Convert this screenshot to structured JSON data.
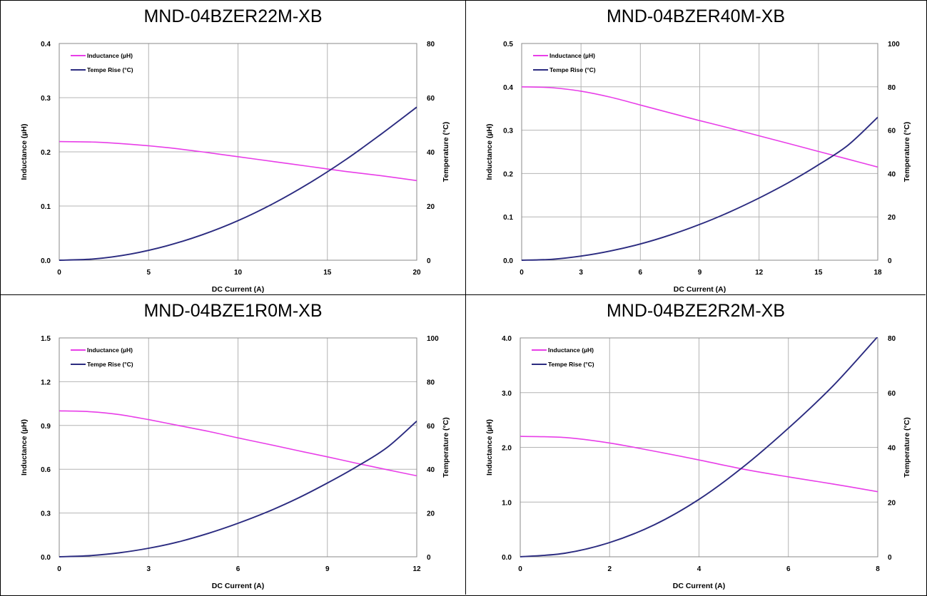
{
  "colors": {
    "inductance": "#e83ee8",
    "temperature": "#2b2b80",
    "grid": "#b4b4b4"
  },
  "chart_data": [
    {
      "type": "line",
      "title": "MND-04BZER22M-XB",
      "xlabel": "DC Current (A)",
      "ylabel": "Inductance (µH)",
      "y2label": "Temperature (°C)",
      "xlim": [
        0,
        20
      ],
      "xticks": [
        0,
        5,
        10,
        15,
        20
      ],
      "xtick_labels": [
        "0",
        "5",
        "10",
        "15",
        "20"
      ],
      "ylim": [
        0,
        0.4
      ],
      "yticks": [
        0,
        0.1,
        0.2,
        0.3,
        0.4
      ],
      "ytick_labels": [
        "0.0",
        "0.1",
        "0.2",
        "0.3",
        "0.4"
      ],
      "y2lim": [
        0,
        80
      ],
      "y2ticks": [
        0,
        20,
        40,
        60,
        80
      ],
      "y2tick_labels": [
        "0",
        "20",
        "40",
        "60",
        "80"
      ],
      "grid": true,
      "legend": "top-left",
      "series": [
        {
          "name": "Inductance (µH)",
          "axis": "left",
          "x": [
            0,
            2,
            4,
            6,
            8,
            10,
            12,
            14,
            16,
            18,
            20
          ],
          "y": [
            0.219,
            0.218,
            0.214,
            0.208,
            0.2,
            0.191,
            0.182,
            0.173,
            0.164,
            0.156,
            0.147
          ]
        },
        {
          "name": "Tempe Rise (°C)",
          "axis": "right",
          "x": [
            0,
            2,
            4,
            6,
            8,
            10,
            12,
            14,
            16,
            18,
            20
          ],
          "y": [
            0,
            0.5,
            2.3,
            5.3,
            9.4,
            14.6,
            21.0,
            28.5,
            37.0,
            46.5,
            56.5
          ]
        }
      ]
    },
    {
      "type": "line",
      "title": "MND-04BZER40M-XB",
      "xlabel": "DC Current (A)",
      "ylabel": "Inductance (µH)",
      "y2label": "Temperature (°C)",
      "xlim": [
        0,
        18
      ],
      "xticks": [
        0,
        3,
        6,
        9,
        12,
        15,
        18
      ],
      "xtick_labels": [
        "0",
        "3",
        "6",
        "9",
        "12",
        "15",
        "18"
      ],
      "ylim": [
        0,
        0.5
      ],
      "yticks": [
        0,
        0.1,
        0.2,
        0.3,
        0.4,
        0.5
      ],
      "ytick_labels": [
        "0.0",
        "0.1",
        "0.2",
        "0.3",
        "0.4",
        "0.5"
      ],
      "y2lim": [
        0,
        100
      ],
      "y2ticks": [
        0,
        20,
        40,
        60,
        80,
        100
      ],
      "y2tick_labels": [
        "0",
        "20",
        "40",
        "60",
        "80",
        "100"
      ],
      "grid": true,
      "legend": "top-left",
      "series": [
        {
          "name": "Inductance (µH)",
          "axis": "left",
          "x": [
            0,
            1.5,
            3,
            4.5,
            6,
            7.5,
            9,
            10.5,
            12,
            13.5,
            15,
            16.5,
            18
          ],
          "y": [
            0.4,
            0.398,
            0.39,
            0.376,
            0.358,
            0.34,
            0.322,
            0.305,
            0.287,
            0.269,
            0.251,
            0.233,
            0.215
          ]
        },
        {
          "name": "Tempe Rise (°C)",
          "axis": "right",
          "x": [
            0,
            1.5,
            3,
            4.5,
            6,
            7.5,
            9,
            10.5,
            12,
            13.5,
            15,
            16.5,
            18
          ],
          "y": [
            0,
            0.4,
            1.9,
            4.3,
            7.5,
            11.6,
            16.5,
            22.2,
            28.7,
            35.9,
            44.0,
            53.1,
            66.0
          ]
        }
      ]
    },
    {
      "type": "line",
      "title": "MND-04BZE1R0M-XB",
      "xlabel": "DC Current (A)",
      "ylabel": "Inductance (µH)",
      "y2label": "Temperature (°C)",
      "xlim": [
        0,
        12
      ],
      "xticks": [
        0,
        3,
        6,
        9,
        12
      ],
      "xtick_labels": [
        "0",
        "3",
        "6",
        "9",
        "12"
      ],
      "ylim": [
        0,
        1.5
      ],
      "yticks": [
        0,
        0.3,
        0.6,
        0.9,
        1.2,
        1.5
      ],
      "ytick_labels": [
        "0.0",
        "0.3",
        "0.6",
        "0.9",
        "1.2",
        "1.5"
      ],
      "y2lim": [
        0,
        100
      ],
      "y2ticks": [
        0,
        20,
        40,
        60,
        80,
        100
      ],
      "y2tick_labels": [
        "0",
        "20",
        "40",
        "60",
        "80",
        "100"
      ],
      "grid": true,
      "legend": "top-left",
      "series": [
        {
          "name": "Inductance (µH)",
          "axis": "left",
          "x": [
            0,
            1,
            2,
            3,
            4,
            5,
            6,
            7,
            8,
            9,
            10,
            11,
            12
          ],
          "y": [
            1.0,
            0.995,
            0.975,
            0.94,
            0.9,
            0.86,
            0.815,
            0.772,
            0.728,
            0.685,
            0.64,
            0.597,
            0.555
          ]
        },
        {
          "name": "Tempe Rise (°C)",
          "axis": "right",
          "x": [
            0,
            1,
            2,
            3,
            4,
            5,
            6,
            7,
            8,
            9,
            10,
            11,
            12
          ],
          "y": [
            0,
            0.5,
            1.8,
            3.9,
            6.8,
            10.7,
            15.3,
            20.6,
            26.7,
            33.7,
            41.3,
            49.9,
            62.0
          ]
        }
      ]
    },
    {
      "type": "line",
      "title": "MND-04BZE2R2M-XB",
      "xlabel": "DC Current (A)",
      "ylabel": "Inductance (µH)",
      "y2label": "Temperature (°C)",
      "xlim": [
        0,
        8
      ],
      "xticks": [
        0,
        2,
        4,
        6,
        8
      ],
      "xtick_labels": [
        "0",
        "2",
        "4",
        "6",
        "8"
      ],
      "ylim": [
        0,
        4.0
      ],
      "yticks": [
        0,
        1,
        2,
        3,
        4
      ],
      "ytick_labels": [
        "0.0",
        "1.0",
        "2.0",
        "3.0",
        "4.0"
      ],
      "y2lim": [
        0,
        80
      ],
      "y2ticks": [
        0,
        20,
        40,
        60,
        80
      ],
      "y2tick_labels": [
        "0",
        "20",
        "40",
        "60",
        "80"
      ],
      "grid": true,
      "legend": "top-left",
      "series": [
        {
          "name": "Inductance (µH)",
          "axis": "left",
          "x": [
            0,
            1,
            2,
            3,
            4,
            5,
            6,
            7,
            8
          ],
          "y": [
            2.2,
            2.18,
            2.08,
            1.93,
            1.77,
            1.6,
            1.46,
            1.33,
            1.19
          ]
        },
        {
          "name": "Tempe Rise (°C)",
          "axis": "right",
          "x": [
            0,
            1,
            2,
            3,
            4,
            5,
            6,
            7,
            8
          ],
          "y": [
            0,
            1.3,
            5.2,
            11.7,
            21.0,
            33.0,
            47.0,
            62.5,
            80.5
          ]
        }
      ]
    }
  ]
}
